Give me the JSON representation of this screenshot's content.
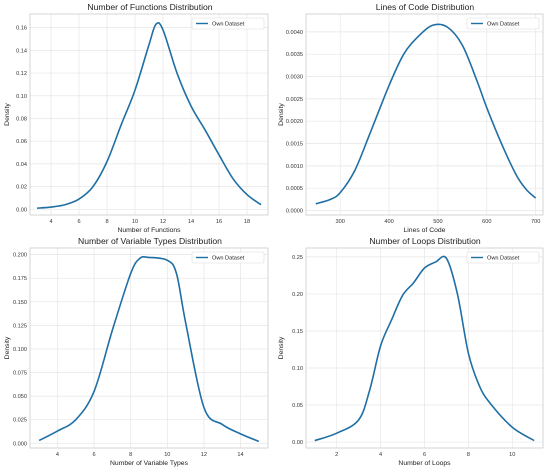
{
  "colors": {
    "line": "#1f6fa5",
    "grid": "#e6e6e6",
    "frame": "#cccccc"
  },
  "chart_data": [
    {
      "type": "line",
      "title": "Number of Functions Distribution",
      "xlabel": "Number of Functions",
      "ylabel": "Density",
      "xlim": [
        2.5,
        19.5
      ],
      "ylim": [
        -0.005,
        0.172
      ],
      "xticks": [
        4,
        6,
        8,
        10,
        12,
        14,
        16,
        18
      ],
      "yticks": [
        0.0,
        0.02,
        0.04,
        0.06,
        0.08,
        0.1,
        0.12,
        0.14,
        0.16
      ],
      "ytick_labels": [
        "0.00",
        "0.02",
        "0.04",
        "0.06",
        "0.08",
        "0.10",
        "0.12",
        "0.14",
        "0.16"
      ],
      "grid": true,
      "legend_position": "top-right",
      "series": [
        {
          "name": "Own Dataset",
          "x": [
            3,
            4,
            5,
            6,
            7,
            8,
            9,
            10,
            11,
            11.5,
            12,
            13,
            14,
            15,
            16,
            17,
            18,
            19
          ],
          "y": [
            0.001,
            0.002,
            0.004,
            0.009,
            0.02,
            0.042,
            0.074,
            0.105,
            0.145,
            0.163,
            0.158,
            0.12,
            0.091,
            0.07,
            0.048,
            0.027,
            0.013,
            0.004
          ]
        }
      ]
    },
    {
      "type": "line",
      "title": "Lines of Code Distribution",
      "xlabel": "Lines of Code",
      "ylabel": "Density",
      "xlim": [
        230,
        715
      ],
      "ylim": [
        -0.0001,
        0.0044
      ],
      "xticks": [
        300,
        400,
        500,
        600,
        700
      ],
      "yticks": [
        0.0,
        0.0005,
        0.001,
        0.0015,
        0.002,
        0.0025,
        0.003,
        0.0035,
        0.004
      ],
      "ytick_labels": [
        "0.0000",
        "0.0005",
        "0.0010",
        "0.0015",
        "0.0020",
        "0.0025",
        "0.0030",
        "0.0035",
        "0.0040"
      ],
      "grid": true,
      "legend_position": "top-right",
      "series": [
        {
          "name": "Own Dataset",
          "x": [
            250,
            280,
            300,
            330,
            360,
            400,
            430,
            460,
            490,
            520,
            550,
            580,
            600,
            630,
            660,
            680,
            700
          ],
          "y": [
            0.00015,
            0.00025,
            0.0004,
            0.0009,
            0.0017,
            0.0028,
            0.0035,
            0.0039,
            0.00415,
            0.0041,
            0.0037,
            0.0029,
            0.0023,
            0.0015,
            0.0008,
            0.00048,
            0.00028
          ]
        }
      ]
    },
    {
      "type": "line",
      "title": "Number of Variable Types Distribution",
      "xlabel": "Number of Variable Types",
      "ylabel": "Density",
      "xlim": [
        2.5,
        15.5
      ],
      "ylim": [
        -0.005,
        0.207
      ],
      "xticks": [
        4,
        6,
        8,
        10,
        12,
        14
      ],
      "yticks": [
        0.0,
        0.025,
        0.05,
        0.075,
        0.1,
        0.125,
        0.15,
        0.175,
        0.2
      ],
      "ytick_labels": [
        "0.000",
        "0.025",
        "0.050",
        "0.075",
        "0.100",
        "0.125",
        "0.150",
        "0.175",
        "0.200"
      ],
      "grid": true,
      "legend_position": "top-right",
      "series": [
        {
          "name": "Own Dataset",
          "x": [
            3,
            4,
            5,
            6,
            7,
            8,
            8.5,
            9,
            10,
            10.5,
            11,
            12,
            13,
            14,
            15
          ],
          "y": [
            0.003,
            0.013,
            0.025,
            0.055,
            0.12,
            0.18,
            0.196,
            0.197,
            0.194,
            0.18,
            0.128,
            0.038,
            0.02,
            0.01,
            0.002
          ]
        }
      ]
    },
    {
      "type": "line",
      "title": "Number of Loops Distribution",
      "xlabel": "Number of Loops",
      "ylabel": "Density",
      "xlim": [
        0.6,
        11.4
      ],
      "ylim": [
        -0.008,
        0.262
      ],
      "xticks": [
        2,
        4,
        6,
        8,
        10
      ],
      "yticks": [
        0.0,
        0.05,
        0.1,
        0.15,
        0.2,
        0.25
      ],
      "ytick_labels": [
        "0.00",
        "0.05",
        "0.10",
        "0.15",
        "0.20",
        "0.25"
      ],
      "grid": true,
      "legend_position": "top-right",
      "series": [
        {
          "name": "Own Dataset",
          "x": [
            1,
            2,
            3,
            3.5,
            4,
            4.5,
            5,
            5.5,
            6,
            6.5,
            7,
            7.5,
            8,
            8.5,
            9,
            10,
            11
          ],
          "y": [
            0.002,
            0.012,
            0.03,
            0.07,
            0.13,
            0.165,
            0.198,
            0.215,
            0.235,
            0.243,
            0.248,
            0.2,
            0.12,
            0.076,
            0.052,
            0.02,
            0.002
          ]
        }
      ]
    }
  ]
}
